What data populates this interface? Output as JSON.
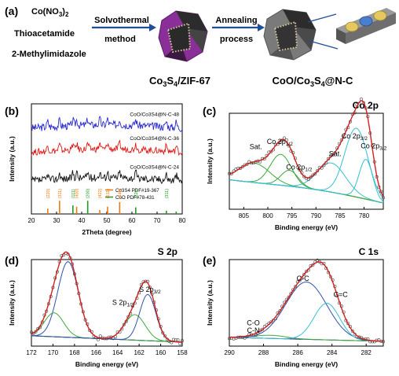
{
  "colors": {
    "axis": "#000000",
    "raw": "#444444",
    "fit_total": "#d62020",
    "background": "#1f2f8a",
    "arrow": "#1f4e96",
    "xrd_blue": "#2a2acf",
    "xrd_red": "#e01818",
    "xrd_black": "#111111",
    "ref_orange": "#f07a10",
    "ref_green": "#229922",
    "comp_green": "#3da83d",
    "comp_cyan": "#36c0d0",
    "comp_blue": "#3050b0",
    "octa_purple": "#8a2e98",
    "octa_dark": "#2c2c2c",
    "octa_gray": "#7a7a7a"
  },
  "panel_a": {
    "label": "(a)",
    "reagents": [
      {
        "base": "Co(NO",
        "sub": "3",
        "tail": ")",
        "sub2": "2"
      },
      {
        "base": "Thioacetamide"
      },
      {
        "base": "2-Methylimidazole"
      }
    ],
    "step1": "Solvothermal",
    "step1b": "method",
    "step2": "Annealing",
    "step2b": "process",
    "product1": {
      "p1": "Co",
      "s1": "3",
      "p2": "S",
      "s2": "4",
      "p3": "/ZIF-67"
    },
    "product2": {
      "p1": "CoO/Co",
      "s1": "3",
      "p2": "S",
      "s2": "4",
      "p3": "@N-C"
    }
  },
  "chart_data": [
    {
      "panel": "(b)",
      "type": "line",
      "xlabel": "2Theta (degree)",
      "ylabel": "Intensity (a.u.)",
      "xlim": [
        20,
        80
      ],
      "xticks": [
        20,
        30,
        40,
        50,
        60,
        70,
        80
      ],
      "series": [
        {
          "name": "CoO/Co3S4@N-C-48",
          "offset": 0.78,
          "noise": 0.035
        },
        {
          "name": "CoO/Co3S4@N-C-36",
          "offset": 0.56,
          "noise": 0.03
        },
        {
          "name": "CoO/Co3S4@N-C-24",
          "offset": 0.3,
          "noise": 0.035
        }
      ],
      "reference": [
        {
          "name": "Co3S4 PDF#19-367",
          "peaks": [
            16.1,
            26.5,
            31.2,
            38.0,
            47.2,
            50.3,
            55.1
          ],
          "heights": [
            0.3,
            0.4,
            1.0,
            0.55,
            0.3,
            0.55,
            0.9
          ]
        },
        {
          "name": "CoO PDF#78-431",
          "peaks": [
            36.5,
            42.4,
            61.5,
            73.7,
            77.6
          ],
          "heights": [
            0.65,
            1.0,
            0.5,
            0.25,
            0.18
          ]
        }
      ],
      "peak_labels": [
        "(220)",
        "(311)",
        "(111)",
        "(400)",
        "(200)",
        "(422)",
        "(511)",
        "(440)",
        "(220)",
        "(311)"
      ],
      "peak_label_x": [
        26.5,
        31.2,
        36.5,
        38.0,
        42.4,
        47.2,
        50.3,
        55.1,
        61.5,
        73.7
      ]
    },
    {
      "panel": "(c)",
      "type": "line",
      "title": "Co 2p",
      "xlabel": "Binding energy (eV)",
      "ylabel": "Intensity (a.u.)",
      "xlim": [
        808,
        776
      ],
      "xticks": [
        805,
        800,
        795,
        790,
        785,
        780
      ],
      "components": [
        {
          "center": 802.8,
          "height": 0.22,
          "width": 3.2
        },
        {
          "center": 797.3,
          "height": 0.35,
          "width": 2.2
        },
        {
          "center": 795.5,
          "height": 0.18,
          "width": 1.8
        },
        {
          "center": 786.8,
          "height": 0.33,
          "width": 3.0
        },
        {
          "center": 781.6,
          "height": 0.78,
          "width": 2.4
        },
        {
          "center": 779.6,
          "height": 0.45,
          "width": 1.4
        }
      ],
      "annotations": [
        {
          "text": "Sat.",
          "x": 802.5,
          "y": 0.68
        },
        {
          "text": "Co 2p1/2",
          "main": "Co 2p",
          "sub": "1/2",
          "x": 797.5,
          "y": 0.74
        },
        {
          "text": "Co 2p1/2",
          "main": "Co 2p",
          "sub": "1/2",
          "x": 793.5,
          "y": 0.45
        },
        {
          "text": "Sat.",
          "x": 786.0,
          "y": 0.6
        },
        {
          "text": "Co 2p3/2",
          "main": "Co 2p",
          "sub": "3/2",
          "x": 782.0,
          "y": 0.8
        },
        {
          "text": "Co 2p3/2",
          "main": "Co 2p",
          "sub": "3/2",
          "x": 778.0,
          "y": 0.69
        }
      ]
    },
    {
      "panel": "(d)",
      "type": "line",
      "title": "S 2p",
      "xlabel": "Binding energy (eV)",
      "ylabel": "Intensity (a.u.)",
      "xlim": [
        172,
        158
      ],
      "xticks": [
        172,
        170,
        168,
        166,
        164,
        162,
        160,
        158
      ],
      "components": [
        {
          "center": 168.6,
          "height": 0.95,
          "width": 0.95
        },
        {
          "center": 169.9,
          "height": 0.3,
          "width": 0.9
        },
        {
          "center": 162.4,
          "height": 0.32,
          "width": 0.95
        },
        {
          "center": 161.2,
          "height": 0.58,
          "width": 0.75
        }
      ],
      "annotations": [
        {
          "text": "S 2p3/2",
          "main": "S 2p",
          "sub": "3/2",
          "x": 161.0,
          "y": 0.68
        },
        {
          "text": "S 2p1/2",
          "main": "S 2p",
          "sub": "1/2",
          "x": 163.5,
          "y": 0.52
        }
      ]
    },
    {
      "panel": "(e)",
      "type": "line",
      "title": "C 1s",
      "xlabel": "Binding energy (eV)",
      "ylabel": "Intensity (a.u.)",
      "xlim": [
        290,
        281
      ],
      "xticks": [
        290,
        288,
        286,
        284,
        282
      ],
      "components": [
        {
          "center": 287.6,
          "height": 0.04,
          "width": 0.9
        },
        {
          "center": 285.5,
          "height": 0.72,
          "width": 1.2
        },
        {
          "center": 284.3,
          "height": 0.46,
          "width": 0.75
        }
      ],
      "annotations": [
        {
          "text": "C-C",
          "x": 285.7,
          "y": 0.82
        },
        {
          "text": "C=C",
          "x": 283.5,
          "y": 0.62
        },
        {
          "text": "C-O",
          "x": 288.6,
          "y": 0.26
        },
        {
          "text": "C-N",
          "x": 288.6,
          "y": 0.17
        }
      ]
    }
  ]
}
